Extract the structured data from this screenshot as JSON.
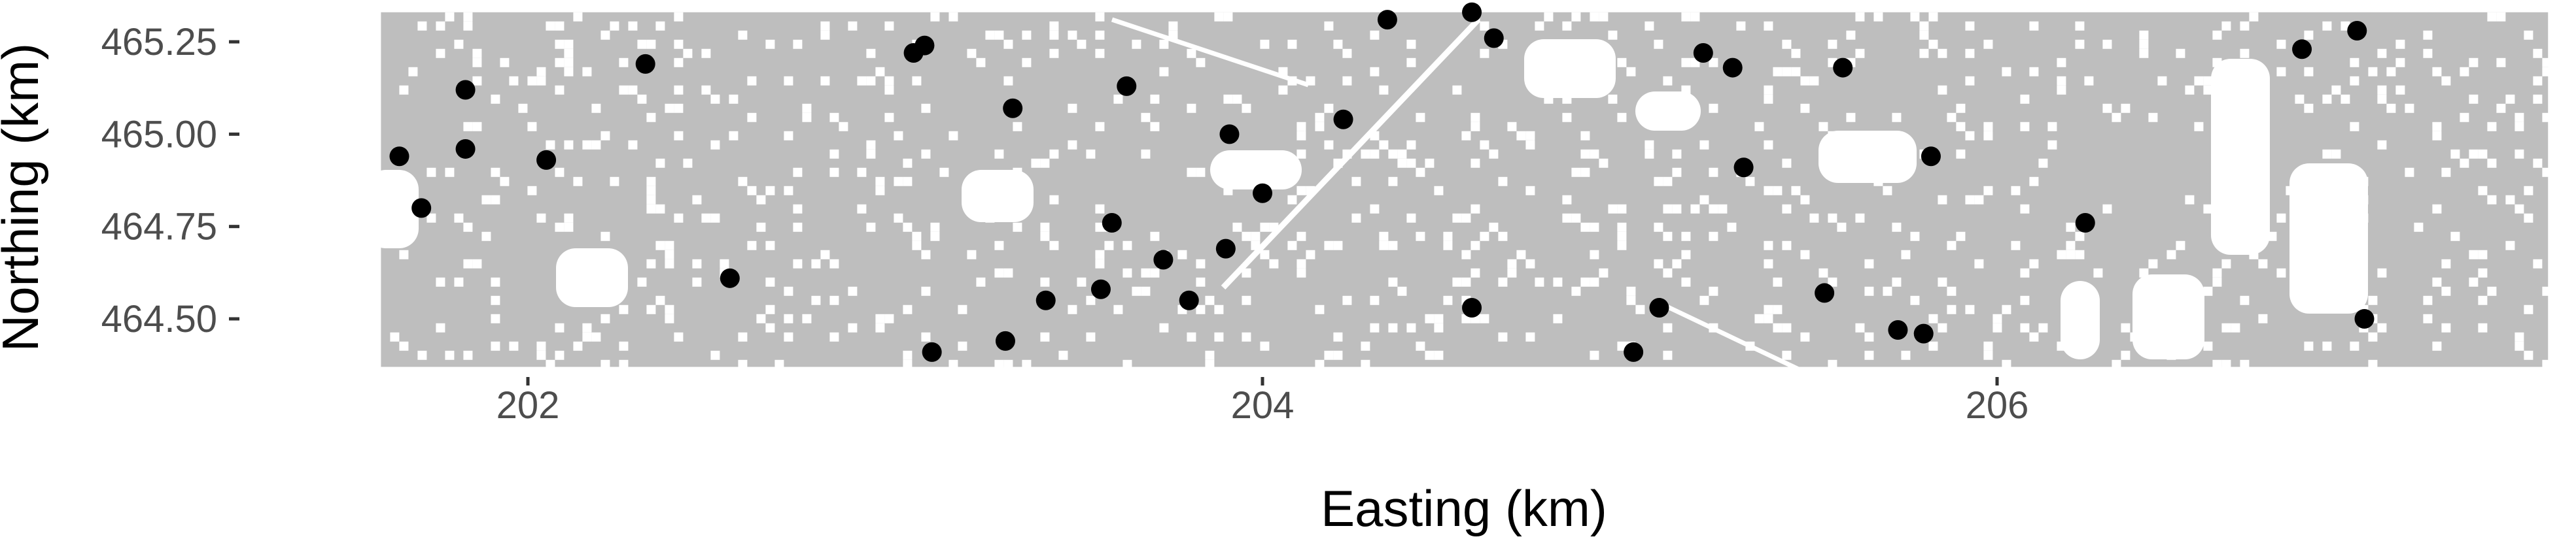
{
  "chart_data": {
    "type": "scatter",
    "title": "",
    "xlabel": "Easting (km)",
    "ylabel": "Northing (km)",
    "xlim": [
      201.6,
      207.5
    ],
    "ylim": [
      464.35,
      465.35
    ],
    "x_ticks": [
      202,
      204,
      206
    ],
    "x_tick_labels": [
      "202",
      "204",
      "206"
    ],
    "y_ticks": [
      464.5,
      464.75,
      465.0,
      465.25
    ],
    "y_tick_labels": [
      "464.50",
      "464.75",
      "465.00",
      "465.25"
    ],
    "grid": false,
    "legend": "none",
    "background_raster": {
      "description_color": "grey land-cover raster over study area",
      "fill_color": "#bebebe",
      "extent_x": [
        201.6,
        207.5
      ],
      "extent_y": [
        464.37,
        465.33
      ]
    },
    "series": [
      {
        "color": "#000000",
        "points": [
          {
            "x": 201.65,
            "y": 464.94
          },
          {
            "x": 201.71,
            "y": 464.8
          },
          {
            "x": 201.83,
            "y": 465.12
          },
          {
            "x": 201.83,
            "y": 464.96
          },
          {
            "x": 202.05,
            "y": 464.93
          },
          {
            "x": 202.32,
            "y": 465.19
          },
          {
            "x": 202.55,
            "y": 464.61
          },
          {
            "x": 203.05,
            "y": 465.22
          },
          {
            "x": 203.08,
            "y": 465.24
          },
          {
            "x": 203.1,
            "y": 464.41
          },
          {
            "x": 203.3,
            "y": 464.44
          },
          {
            "x": 203.32,
            "y": 465.07
          },
          {
            "x": 203.41,
            "y": 464.55
          },
          {
            "x": 203.56,
            "y": 464.58
          },
          {
            "x": 203.59,
            "y": 464.76
          },
          {
            "x": 203.63,
            "y": 465.13
          },
          {
            "x": 203.73,
            "y": 464.66
          },
          {
            "x": 203.8,
            "y": 464.55
          },
          {
            "x": 203.9,
            "y": 464.69
          },
          {
            "x": 203.91,
            "y": 465.0
          },
          {
            "x": 204.0,
            "y": 464.84
          },
          {
            "x": 204.22,
            "y": 465.04
          },
          {
            "x": 204.34,
            "y": 465.31
          },
          {
            "x": 204.57,
            "y": 465.33
          },
          {
            "x": 204.57,
            "y": 464.53
          },
          {
            "x": 204.63,
            "y": 465.26
          },
          {
            "x": 205.01,
            "y": 464.41
          },
          {
            "x": 205.08,
            "y": 464.53
          },
          {
            "x": 205.2,
            "y": 465.22
          },
          {
            "x": 205.28,
            "y": 465.18
          },
          {
            "x": 205.31,
            "y": 464.91
          },
          {
            "x": 205.53,
            "y": 464.57
          },
          {
            "x": 205.58,
            "y": 465.18
          },
          {
            "x": 205.73,
            "y": 464.47
          },
          {
            "x": 205.8,
            "y": 464.46
          },
          {
            "x": 205.82,
            "y": 464.94
          },
          {
            "x": 206.24,
            "y": 464.76
          },
          {
            "x": 206.83,
            "y": 465.23
          },
          {
            "x": 206.98,
            "y": 465.28
          },
          {
            "x": 207.0,
            "y": 464.5
          }
        ]
      }
    ]
  }
}
